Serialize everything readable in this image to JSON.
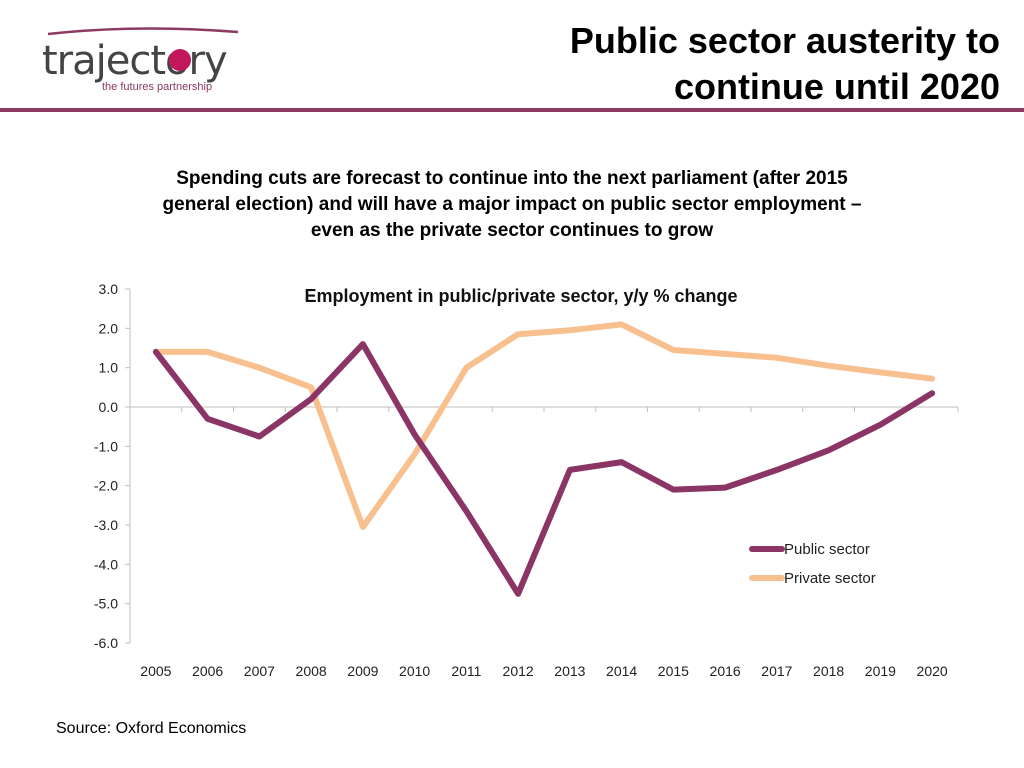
{
  "header": {
    "logo_main": "trajectory",
    "logo_tagline": "the futures partnership",
    "title_line1": "Public sector austerity to",
    "title_line2": "continue until 2020"
  },
  "subtitle": {
    "line1": "Spending cuts are forecast to continue into the next parliament (after 2015",
    "line2": "general election) and will have a major impact on public sector employment –",
    "line3": "even as the private sector continues to grow"
  },
  "source": "Source: Oxford Economics",
  "colors": {
    "brand": "#8b3a62",
    "public": "#8b3566",
    "private": "#f9c08f",
    "logo_dot": "#c2185b"
  },
  "chart_data": {
    "type": "line",
    "title": "Employment in public/private sector, y/y % change",
    "categories": [
      "2005",
      "2006",
      "2007",
      "2008",
      "2009",
      "2010",
      "2011",
      "2012",
      "2013",
      "2014",
      "2015",
      "2016",
      "2017",
      "2018",
      "2019",
      "2020"
    ],
    "series": [
      {
        "name": "Public sector",
        "color": "#8b3566",
        "values": [
          1.4,
          -0.3,
          -0.75,
          0.2,
          1.6,
          -0.7,
          -2.65,
          -4.75,
          -1.6,
          -1.4,
          -2.1,
          -2.05,
          -1.6,
          -1.1,
          -0.45,
          0.35
        ]
      },
      {
        "name": "Private sector",
        "color": "#f9c08f",
        "values": [
          1.4,
          1.4,
          1.0,
          0.5,
          -3.05,
          -1.2,
          1.0,
          1.85,
          1.95,
          2.1,
          1.45,
          1.35,
          1.25,
          1.05,
          0.88,
          0.72
        ]
      }
    ],
    "yticks": [
      "3.0",
      "2.0",
      "1.0",
      "0.0",
      "-1.0",
      "-2.0",
      "-3.0",
      "-4.0",
      "-5.0",
      "-6.0"
    ],
    "ylim": [
      -6,
      3
    ],
    "grid": false,
    "legend": "bottom-right"
  }
}
